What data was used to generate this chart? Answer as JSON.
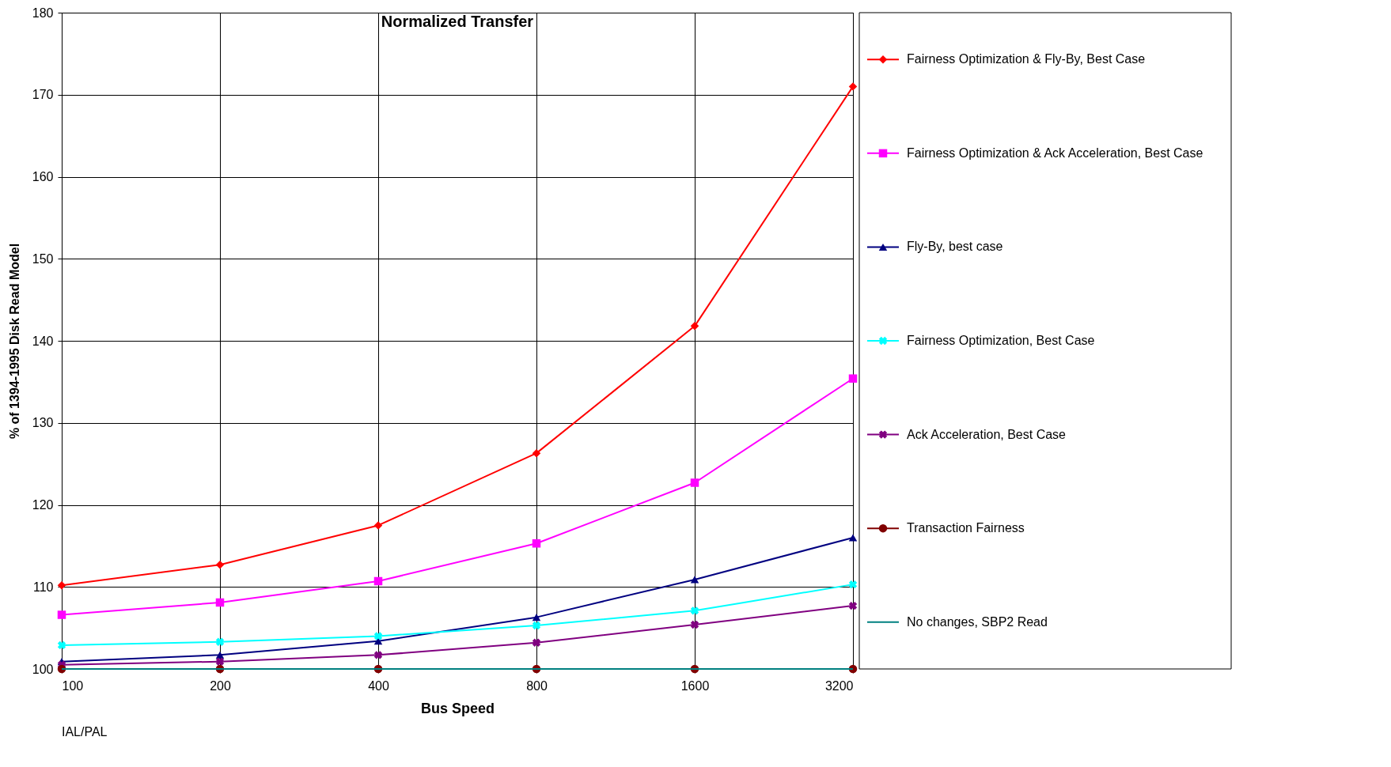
{
  "chart_data": {
    "type": "line",
    "title": "Normalized Transfer",
    "xlabel": "Bus Speed",
    "ylabel": "% of 1394-1995 Disk Read Model",
    "categories": [
      "100",
      "200",
      "400",
      "800",
      "1600",
      "3200"
    ],
    "ylim": [
      100,
      180
    ],
    "yticks": [
      100,
      110,
      120,
      130,
      140,
      150,
      160,
      170,
      180
    ],
    "grid": true,
    "legend": "right",
    "line_style": "solid",
    "annotations": [
      "IAL/PAL"
    ],
    "series": [
      {
        "name": "Fairness Optimization & Fly-By, Best Case",
        "color": "#ff0000",
        "marker": "diamond",
        "values": [
          110.2,
          112.7,
          117.5,
          126.3,
          141.8,
          171.0
        ]
      },
      {
        "name": "Fairness Optimization & Ack Acceleration, Best Case",
        "color": "#ff00ff",
        "marker": "square",
        "values": [
          106.6,
          108.1,
          110.7,
          115.3,
          122.7,
          135.4
        ]
      },
      {
        "name": "Fly-By, best case",
        "color": "#000080",
        "marker": "triangle",
        "values": [
          100.9,
          101.7,
          103.4,
          106.3,
          110.9,
          116.0
        ]
      },
      {
        "name": "Fairness Optimization, Best Case",
        "color": "#00ffff",
        "marker": "cross",
        "values": [
          102.9,
          103.3,
          104.0,
          105.3,
          107.1,
          110.3
        ]
      },
      {
        "name": "Ack Acceleration, Best Case",
        "color": "#800080",
        "marker": "cross",
        "values": [
          100.5,
          100.9,
          101.7,
          103.2,
          105.4,
          107.7
        ]
      },
      {
        "name": "Transaction Fairness",
        "color": "#800000",
        "marker": "circle",
        "values": [
          100,
          100,
          100,
          100,
          100,
          100
        ]
      },
      {
        "name": "No changes, SBP2 Read",
        "color": "#008080",
        "marker": "none",
        "values": [
          100,
          100,
          100,
          100,
          100,
          100
        ]
      }
    ]
  }
}
